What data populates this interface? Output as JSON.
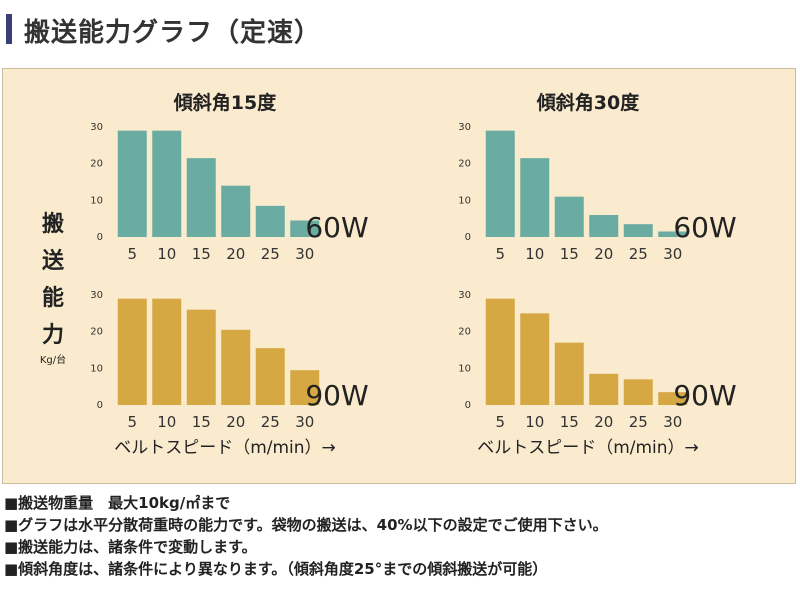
{
  "page": {
    "title": "搬送能力グラフ（定速）"
  },
  "y_axis": {
    "label_chars": [
      "搬",
      "送",
      "能",
      "力"
    ],
    "unit": "Kg/台"
  },
  "colors": {
    "title_accent": "#3a3f7a",
    "panel_bg": "#faebcf",
    "teal": "#6aaba2",
    "gold": "#d6a844"
  },
  "chart_data": [
    {
      "type": "bar",
      "title": "傾斜角15度",
      "series_label": "60W",
      "categories": [
        "5",
        "10",
        "15",
        "20",
        "25",
        "30"
      ],
      "values": [
        29,
        29,
        21.5,
        14,
        8.5,
        4.5
      ],
      "yticks": [
        "30",
        "20",
        "10",
        "0"
      ],
      "ylim": [
        0,
        30
      ],
      "color": "#6aaba2",
      "xlabel": ""
    },
    {
      "type": "bar",
      "title": "傾斜角30度",
      "series_label": "60W",
      "categories": [
        "5",
        "10",
        "15",
        "20",
        "25",
        "30"
      ],
      "values": [
        29,
        21.5,
        11,
        6,
        3.5,
        1.5
      ],
      "yticks": [
        "30",
        "20",
        "10",
        "0"
      ],
      "ylim": [
        0,
        30
      ],
      "color": "#6aaba2",
      "xlabel": ""
    },
    {
      "type": "bar",
      "title": "",
      "series_label": "90W",
      "categories": [
        "5",
        "10",
        "15",
        "20",
        "25",
        "30"
      ],
      "values": [
        29,
        29,
        26,
        20.5,
        15.5,
        9.5
      ],
      "yticks": [
        "30",
        "20",
        "10",
        "0"
      ],
      "ylim": [
        0,
        30
      ],
      "color": "#d6a844",
      "xlabel": "ベルトスピード（m/min）→"
    },
    {
      "type": "bar",
      "title": "",
      "series_label": "90W",
      "categories": [
        "5",
        "10",
        "15",
        "20",
        "25",
        "30"
      ],
      "values": [
        29,
        25,
        17,
        8.5,
        7,
        3.5
      ],
      "yticks": [
        "30",
        "20",
        "10",
        "0"
      ],
      "ylim": [
        0,
        30
      ],
      "color": "#d6a844",
      "xlabel": "ベルトスピード（m/min）→"
    }
  ],
  "notes": [
    "■搬送物重量　最大10kg/㎡まで",
    "■グラフは水平分散荷重時の能力です。袋物の搬送は、40%以下の設定でご使用下さい。",
    "■搬送能力は、諸条件で変動します。",
    "■傾斜角度は、諸条件により異なります。（傾斜角度25°までの傾斜搬送が可能）"
  ]
}
